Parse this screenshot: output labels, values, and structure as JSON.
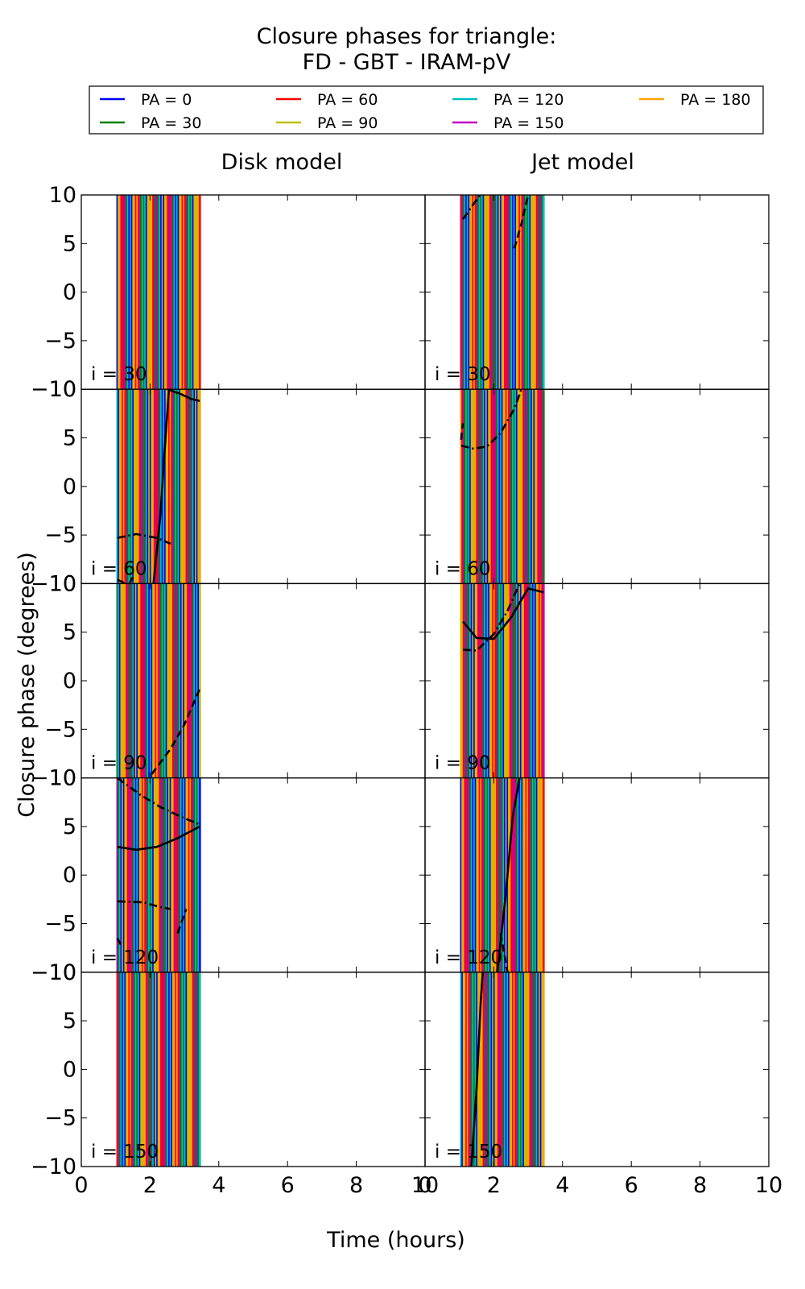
{
  "title_lines": [
    "Closure phases for triangle:",
    "FD - GBT - IRAM-pV"
  ],
  "ylabel": "Closure phase (degrees)",
  "xlabel": "Time (hours)",
  "column_titles": [
    "Disk model",
    "Jet model"
  ],
  "row_labels": [
    "i = 30",
    "i = 60",
    "i = 90",
    "i = 120",
    "i = 150"
  ],
  "legend": [
    {
      "label": "PA = 0",
      "color": "#0000ff"
    },
    {
      "label": "PA = 30",
      "color": "#008000"
    },
    {
      "label": "PA = 60",
      "color": "#ff0000"
    },
    {
      "label": "PA = 90",
      "color": "#bfbf00"
    },
    {
      "label": "PA = 120",
      "color": "#00bfbf"
    },
    {
      "label": "PA = 150",
      "color": "#bf00bf"
    },
    {
      "label": "PA = 180",
      "color": "#ffa500"
    }
  ],
  "chart_data": {
    "type": "line",
    "xlim": [
      0,
      10
    ],
    "ylim": [
      -10,
      10
    ],
    "xticks": [
      0,
      2,
      4,
      6,
      8,
      10
    ],
    "xtick_labels": [
      "0",
      "2",
      "4",
      "6",
      "8",
      "10"
    ],
    "yticks": [
      10,
      5,
      0,
      -5,
      -10
    ],
    "ytick_labels": [
      "10",
      "5",
      "0",
      "−5",
      "−10"
    ],
    "time_range_hours": [
      1.05,
      3.45
    ],
    "panels": [
      {
        "model": "Disk model",
        "inclination": 30,
        "black_lines": []
      },
      {
        "model": "Jet model",
        "inclination": 30,
        "black_lines": [
          {
            "style": "dashdot",
            "points": [
              [
                1.1,
                7.5
              ],
              [
                1.3,
                8.5
              ],
              [
                1.6,
                10
              ]
            ]
          },
          {
            "style": "dashed",
            "points": [
              [
                2.6,
                4.5
              ],
              [
                2.8,
                7
              ],
              [
                3.0,
                10
              ]
            ]
          }
        ]
      },
      {
        "model": "Disk model",
        "inclination": 60,
        "black_lines": [
          {
            "style": "solid",
            "points": [
              [
                2.1,
                -10
              ],
              [
                2.3,
                -3
              ],
              [
                2.45,
                5
              ],
              [
                2.55,
                10
              ]
            ]
          },
          {
            "style": "solid",
            "points": [
              [
                2.5,
                10
              ],
              [
                2.9,
                9.5
              ],
              [
                3.2,
                9.0
              ],
              [
                3.45,
                8.8
              ]
            ]
          },
          {
            "style": "dashdot",
            "points": [
              [
                1.05,
                -5.3
              ],
              [
                1.6,
                -4.9
              ],
              [
                2.2,
                -5.3
              ],
              [
                2.6,
                -5.9
              ]
            ]
          },
          {
            "style": "dashed",
            "points": [
              [
                1.05,
                -9.6
              ],
              [
                1.3,
                -10
              ]
            ]
          },
          {
            "style": "dashed",
            "points": [
              [
                1.4,
                -10
              ],
              [
                1.55,
                -9
              ]
            ]
          }
        ]
      },
      {
        "model": "Jet model",
        "inclination": 60,
        "black_lines": [
          {
            "style": "dashdot",
            "points": [
              [
                1.05,
                4.2
              ],
              [
                1.4,
                3.9
              ],
              [
                1.8,
                4.1
              ],
              [
                2.2,
                5.5
              ],
              [
                2.6,
                8.0
              ],
              [
                2.8,
                10
              ]
            ]
          },
          {
            "style": "dashed",
            "points": [
              [
                1.05,
                4.8
              ],
              [
                1.1,
                6.5
              ]
            ]
          }
        ]
      },
      {
        "model": "Disk model",
        "inclination": 90,
        "black_lines": [
          {
            "style": "dashed",
            "points": [
              [
                2.05,
                -9.6
              ],
              [
                2.6,
                -7
              ],
              [
                3.0,
                -4.5
              ],
              [
                3.45,
                -0.8
              ]
            ]
          }
        ]
      },
      {
        "model": "Jet model",
        "inclination": 90,
        "black_lines": [
          {
            "style": "solid",
            "points": [
              [
                1.1,
                6.1
              ],
              [
                1.5,
                4.4
              ],
              [
                2.0,
                4.3
              ],
              [
                2.5,
                6.5
              ],
              [
                3.0,
                9.5
              ],
              [
                3.45,
                9.1
              ]
            ]
          },
          {
            "style": "dashdot",
            "points": [
              [
                1.1,
                3.2
              ],
              [
                1.5,
                3.1
              ],
              [
                2.0,
                4.8
              ],
              [
                2.4,
                7.2
              ],
              [
                2.75,
                10
              ]
            ]
          }
        ]
      },
      {
        "model": "Disk model",
        "inclination": 120,
        "black_lines": [
          {
            "style": "solid",
            "points": [
              [
                1.05,
                2.9
              ],
              [
                1.6,
                2.6
              ],
              [
                2.2,
                2.9
              ],
              [
                2.8,
                3.8
              ],
              [
                3.45,
                5.0
              ]
            ]
          },
          {
            "style": "dashdot",
            "points": [
              [
                1.05,
                10
              ],
              [
                1.7,
                8.3
              ],
              [
                2.3,
                7.0
              ],
              [
                2.9,
                6.0
              ],
              [
                3.45,
                5.2
              ]
            ]
          },
          {
            "style": "dashdot",
            "points": [
              [
                1.05,
                -2.7
              ],
              [
                1.8,
                -2.8
              ],
              [
                2.3,
                -3.3
              ],
              [
                2.6,
                -3.5
              ]
            ]
          },
          {
            "style": "dashed",
            "points": [
              [
                1.05,
                -6.5
              ],
              [
                1.2,
                -7.5
              ]
            ]
          },
          {
            "style": "dashed",
            "points": [
              [
                2.8,
                -6
              ],
              [
                3.05,
                -3.5
              ]
            ]
          }
        ]
      },
      {
        "model": "Jet model",
        "inclination": 120,
        "black_lines": [
          {
            "style": "solid",
            "points": [
              [
                2.1,
                -10
              ],
              [
                2.35,
                -2
              ],
              [
                2.55,
                6
              ],
              [
                2.75,
                10
              ]
            ]
          },
          {
            "style": "dashed",
            "points": [
              [
                2.2,
                -6
              ],
              [
                2.4,
                -10
              ]
            ]
          }
        ]
      },
      {
        "model": "Disk model",
        "inclination": 150,
        "black_lines": []
      },
      {
        "model": "Jet model",
        "inclination": 150,
        "black_lines": [
          {
            "style": "solid",
            "points": [
              [
                1.35,
                -10
              ],
              [
                1.5,
                -2
              ],
              [
                1.62,
                7
              ],
              [
                1.68,
                10
              ]
            ]
          }
        ]
      }
    ]
  }
}
